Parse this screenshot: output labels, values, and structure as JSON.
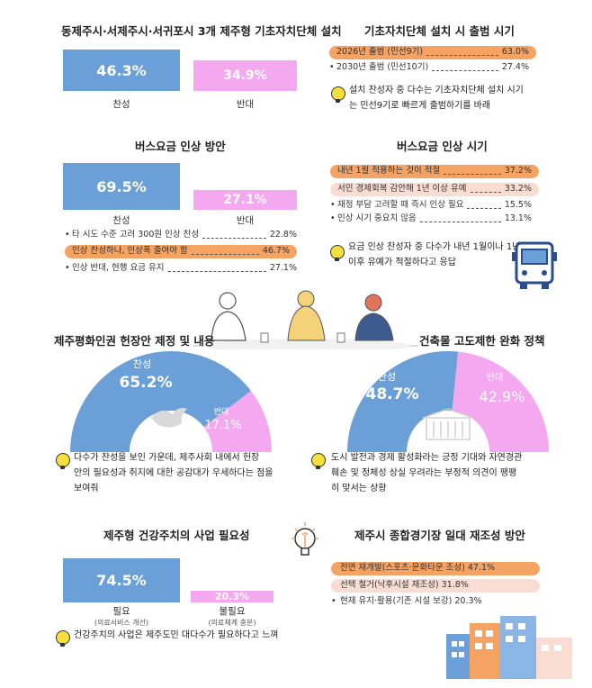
{
  "sec1": {
    "title": "동제주시·서제주시·서귀포시 3개 제주형 기초자치단체 설치",
    "values": [
      "46.3%",
      "34.9%"
    ],
    "labels": [
      "찬성",
      "반대"
    ]
  },
  "sec2": {
    "title": "기초자치단체 설치 시 출범 시기",
    "rows": [
      {
        "label": "2026년 출범 (민선9기)",
        "value": "63.0%"
      },
      {
        "label": "2030년 출범 (민선10기)",
        "value": "27.4%"
      }
    ],
    "note": [
      "설치 찬성자 중 다수는 기초자치단체 설치 시기",
      "는 민선9기로 빠르게 출범하기를 바래"
    ]
  },
  "sec3": {
    "title": "버스요금 인상 방안",
    "values": [
      "69.5%",
      "27.1%"
    ],
    "labels": [
      "찬성",
      "반대"
    ],
    "rows": [
      {
        "label": "타 시도 수준 고려 300원 인상 찬성",
        "value": "22.8%"
      },
      {
        "label": "인상 찬성하나, 인상폭 줄여야 함",
        "value": "46.7%"
      },
      {
        "label": "인상 반대, 현행 요금 유지",
        "value": "27.1%"
      }
    ]
  },
  "sec4": {
    "title": "버스요금 인상 시기",
    "rows": [
      {
        "label": "내년 1월 적용하는 것이 적절",
        "value": "37.2%"
      },
      {
        "label": "서민 경제회복 감안해 1년 이상 유예",
        "value": "33.2%"
      },
      {
        "label": "재정 부담 고려할 때 즉시 인상 필요",
        "value": "15.5%"
      },
      {
        "label": "인상 시기 중요치 않음",
        "value": "13.1%"
      }
    ],
    "note": [
      "요금 인상 찬성자 중 다수가 내년 1월이나 1년",
      "이후 유예가 적절하다고 응답"
    ]
  },
  "sec5": {
    "title": "제주평화인권 헌장안 제정 및 내용",
    "labels": [
      "찬성",
      "반대"
    ],
    "values": [
      "65.2%",
      "17.1%"
    ],
    "note": [
      "다수가 찬성을 보인 가운데, 제주사회 내에서 헌장",
      "안의 필요성과 취지에 대한 공감대가 우세하다는 점을",
      "보여줘"
    ]
  },
  "sec6": {
    "title": "건축물 고도제한 완화 정책",
    "labels": [
      "찬성",
      "반대"
    ],
    "values": [
      "48.7%",
      "42.9%"
    ],
    "note": [
      "도시 발전과 경제 활성화라는 긍정 기대와 자연경관",
      "훼손 및 정체성 상실 우려라는 부정적 의견이 팽팽",
      "히 맞서는 상황"
    ]
  },
  "sec7": {
    "title": "제주형 건강주치의 사업 필요성",
    "values": [
      "74.5%",
      "20.3%"
    ],
    "labels": [
      "필요",
      "불필요"
    ],
    "sublabels": [
      "(의료서비스 개선)",
      "(의료체계 충분)"
    ],
    "note": "건강주치의 사업은 제주도민 대다수가 필요하다고 느껴"
  },
  "sec8": {
    "title": "제주시 종합경기장 일대 재조성 방안",
    "rows": [
      {
        "text": "전면 재개발(스포츠·문화타운 조성) 47.1%"
      },
      {
        "text": "선택 철거(낙후시설 재조성) 31.8%"
      },
      {
        "text": "현재 유지·활용(기존 시설 보강) 20.3%"
      }
    ]
  },
  "colors": {
    "blue": "#6a9fd8",
    "pink": "#f3a8f0",
    "orange": "#f4a363",
    "peach": "#f9dcd2",
    "bulb": "#f6df3a"
  },
  "chart_data": [
    {
      "type": "bar",
      "title": "동제주시·서제주시·서귀포시 3개 제주형 기초자치단체 설치",
      "categories": [
        "찬성",
        "반대"
      ],
      "values": [
        46.3,
        34.9
      ]
    },
    {
      "type": "bar",
      "title": "기초자치단체 설치 시 출범 시기",
      "categories": [
        "2026년 출범 (민선9기)",
        "2030년 출범 (민선10기)"
      ],
      "values": [
        63.0,
        27.4
      ]
    },
    {
      "type": "bar",
      "title": "버스요금 인상 방안",
      "categories": [
        "찬성",
        "반대"
      ],
      "values": [
        69.5,
        27.1
      ]
    },
    {
      "type": "bar",
      "title": "버스요금 인상 방안",
      "categories": [
        "타 시도 수준 고려 300원 인상 찬성",
        "인상 찬성하나, 인상폭 줄여야 함",
        "인상 반대, 현행 요금 유지"
      ],
      "values": [
        22.8,
        46.7,
        27.1
      ]
    },
    {
      "type": "bar",
      "title": "버스요금 인상 시기",
      "categories": [
        "내년 1월 적용하는 것이 적절",
        "서민 경제회복 감안해 1년 이상 유예",
        "재정 부담 고려할 때 즉시 인상 필요",
        "인상 시기 중요치 않음"
      ],
      "values": [
        37.2,
        33.2,
        15.5,
        13.1
      ]
    },
    {
      "type": "pie",
      "title": "제주평화인권 헌장안 제정 및 내용",
      "categories": [
        "찬성",
        "반대"
      ],
      "values": [
        65.2,
        17.1
      ]
    },
    {
      "type": "pie",
      "title": "건축물 고도제한 완화 정책",
      "categories": [
        "찬성",
        "반대"
      ],
      "values": [
        48.7,
        42.9
      ]
    },
    {
      "type": "bar",
      "title": "제주형 건강주치의 사업 필요성",
      "categories": [
        "필요",
        "불필요"
      ],
      "values": [
        74.5,
        20.3
      ]
    },
    {
      "type": "bar",
      "title": "제주시 종합경기장 일대 재조성 방안",
      "categories": [
        "전면 재개발(스포츠·문화타운 조성)",
        "선택 철거(낙후시설 재조성)",
        "현재 유지·활용(기존 시설 보강)"
      ],
      "values": [
        47.1,
        31.8,
        20.3
      ]
    }
  ]
}
